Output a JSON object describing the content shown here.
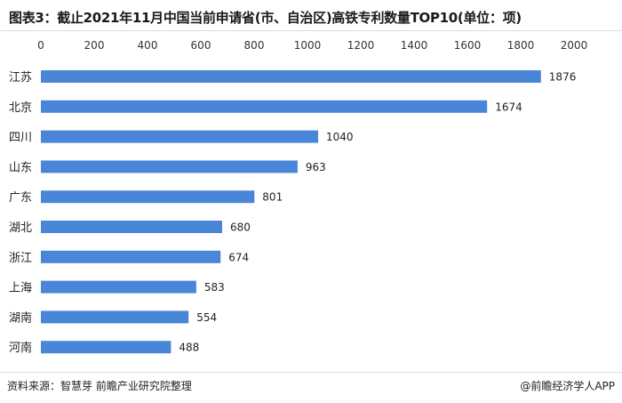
{
  "source": "资料来源：智慧芽 前瞻产业研究院整理",
  "brand": "@前瞻经济学人APP",
  "chart_data": {
    "type": "bar",
    "orientation": "horizontal",
    "title": "图表3：截止2021年11月中国当前申请省(市、自治区)高铁专利数量TOP10(单位：项)",
    "categories": [
      "江苏",
      "北京",
      "四川",
      "山东",
      "广东",
      "湖北",
      "浙江",
      "上海",
      "湖南",
      "河南"
    ],
    "values": [
      1876,
      1674,
      1040,
      963,
      801,
      680,
      674,
      583,
      554,
      488
    ],
    "xlim": [
      0,
      2000
    ],
    "xticks": [
      "0",
      "200",
      "400",
      "600",
      "800",
      "1000",
      "1200",
      "1400",
      "1600",
      "1800",
      "2000"
    ],
    "xaxis_position": "top",
    "grid": false,
    "bar_color": "#4a86d8",
    "data_labels": true
  }
}
